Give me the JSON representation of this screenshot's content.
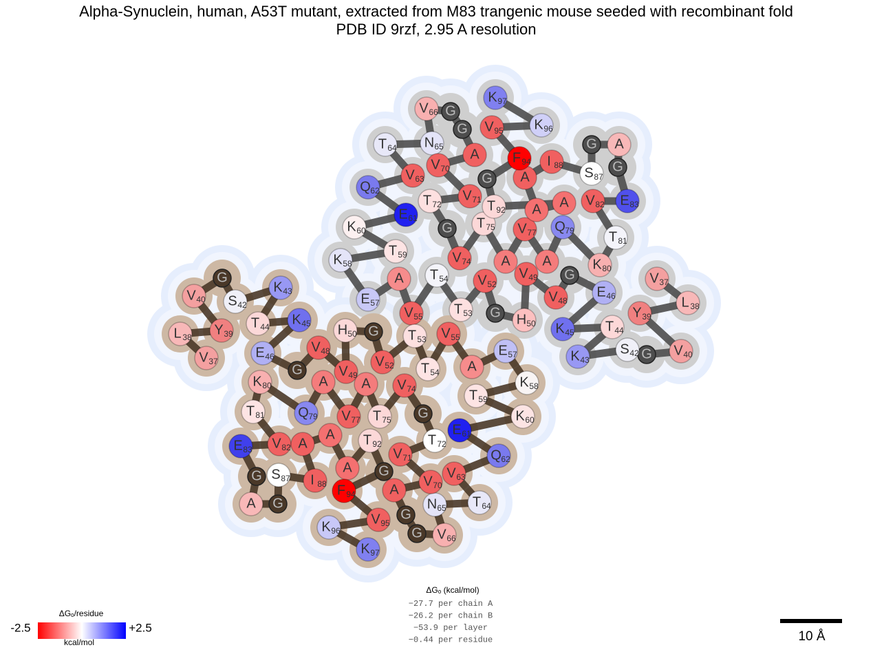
{
  "header": {
    "title": "Alpha-Synuclein, human, A53T mutant, extracted from M83 trangenic mouse seeded with recombinant fold",
    "subtitle": "PDB ID 9rzf, 2.95 A resolution"
  },
  "chains": [
    {
      "letters": [
        "V",
        "L",
        "Y",
        "V",
        "G",
        "S",
        "K",
        "T",
        "K",
        "E",
        "G",
        "V",
        "V",
        "H",
        "G",
        "V",
        "T",
        "T",
        "V",
        "A",
        "E",
        "K",
        "T",
        "K",
        "E",
        "Q",
        "V",
        "T",
        "N",
        "V",
        "G",
        "G",
        "A",
        "V",
        "V",
        "T",
        "G",
        "V",
        "T",
        "A",
        "V",
        "A",
        "Q",
        "K",
        "T",
        "V",
        "E",
        "G",
        "A",
        "G",
        "S",
        "I",
        "A",
        "A",
        "A",
        "T",
        "G",
        "F",
        "V",
        "K",
        "K"
      ],
      "numbers": [
        37,
        38,
        39,
        40,
        null,
        42,
        43,
        44,
        45,
        46,
        null,
        48,
        49,
        50,
        null,
        52,
        53,
        54,
        55,
        null,
        57,
        58,
        59,
        60,
        61,
        62,
        63,
        64,
        65,
        66,
        null,
        null,
        null,
        70,
        71,
        72,
        null,
        74,
        75,
        null,
        77,
        null,
        79,
        80,
        81,
        82,
        83,
        null,
        null,
        null,
        87,
        88,
        null,
        null,
        null,
        92,
        null,
        94,
        95,
        96,
        97
      ],
      "colors": [
        "#f4a0a0",
        "#f8b8b8",
        "#f08080",
        "#f4a0a0",
        "#4d4d4d",
        "#f0f0f8",
        "#9898f4",
        "#fcd8d8",
        "#7070ee",
        "#b0b0f4",
        "#4d4d4d",
        "#f06060",
        "#f06060",
        "#fcc0c0",
        "#4d4d4d",
        "#f06060",
        "#fde0e0",
        "#f4f4fa",
        "#f06060",
        "#f68c8c",
        "#c8c8f6",
        "#e4e4f8",
        "#fde4e4",
        "#fcf0f0",
        "#2020f0",
        "#7a7aee",
        "#f06060",
        "#e8e8f8",
        "#e4e4f8",
        "#f8b0b0",
        "#4d4d4d",
        "#4d4d4d",
        "#f06060",
        "#f06060",
        "#f06060",
        "#fde0e0",
        "#4d4d4d",
        "#f06060",
        "#fcd8d8",
        "#f47c7c",
        "#f06060",
        "#f47c7c",
        "#8888f0",
        "#f8b0b0",
        "#f4f4fa",
        "#f06060",
        "#5050ec",
        "#4d4d4d",
        "#f8b8b8",
        "#4d4d4d",
        "#ffffff",
        "#f06060",
        "#f06060",
        "#f47070",
        "#f47070",
        "#fcd8d8",
        "#4d4d4d",
        "#ff0000",
        "#f06060",
        "#d0d0f8",
        "#8080f0"
      ]
    },
    {
      "letters": [
        "V",
        "L",
        "Y",
        "V",
        "G",
        "S",
        "K",
        "T",
        "K",
        "E",
        "G",
        "V",
        "V",
        "H",
        "G",
        "V",
        "T",
        "T",
        "V",
        "A",
        "E",
        "K",
        "T",
        "K",
        "E",
        "Q",
        "V",
        "T",
        "N",
        "V",
        "G",
        "G",
        "A",
        "V",
        "V",
        "T",
        "G",
        "V",
        "T",
        "A",
        "V",
        "A",
        "Q",
        "K",
        "T",
        "V",
        "E",
        "G",
        "A",
        "G",
        "S",
        "I",
        "A",
        "A",
        "A",
        "T",
        "G",
        "F",
        "V",
        "K",
        "K"
      ],
      "numbers": [
        37,
        38,
        39,
        40,
        null,
        42,
        43,
        44,
        45,
        46,
        null,
        48,
        49,
        50,
        null,
        52,
        53,
        54,
        55,
        null,
        57,
        58,
        59,
        60,
        61,
        62,
        63,
        64,
        65,
        66,
        null,
        null,
        null,
        70,
        71,
        72,
        null,
        74,
        75,
        null,
        77,
        null,
        79,
        80,
        81,
        82,
        83,
        null,
        null,
        null,
        87,
        88,
        null,
        null,
        null,
        92,
        null,
        94,
        95,
        96,
        97
      ],
      "colors": [
        "#f4a0a0",
        "#f8b8b8",
        "#f08080",
        "#f4a0a0",
        "#4a3828",
        "#f0f0f8",
        "#9898f4",
        "#fcd8d8",
        "#7070ee",
        "#b0b0f4",
        "#4a3828",
        "#f06060",
        "#f06060",
        "#fcd8d8",
        "#4a3828",
        "#f06060",
        "#fde0e0",
        "#fde4e4",
        "#f06060",
        "#f68c8c",
        "#c0c0f6",
        "#f8f4f4",
        "#fde4e4",
        "#fce4e4",
        "#2020f0",
        "#7a7aee",
        "#f06060",
        "#e8e8f8",
        "#e4e4f8",
        "#f8b0b0",
        "#4a3828",
        "#4a3828",
        "#f06060",
        "#f06060",
        "#f06060",
        "#ffffff",
        "#4a3828",
        "#f06060",
        "#fcd8d8",
        "#f47c7c",
        "#f06060",
        "#f47c7c",
        "#8888f0",
        "#f8b0b0",
        "#fde4e4",
        "#f06060",
        "#4040ec",
        "#4a3828",
        "#f8b8b8",
        "#4a3828",
        "#ffffff",
        "#f06060",
        "#f06060",
        "#f47070",
        "#f47070",
        "#fcd8d8",
        "#4a3828",
        "#ff0000",
        "#f06060",
        "#c8c8f8",
        "#8080f0"
      ]
    }
  ],
  "legend": {
    "title": "ΔGₒ/residue",
    "min": "-2.5",
    "max": "+2.5",
    "unit": "kcal/mol"
  },
  "energy": {
    "title": "ΔGₒ (kcal/mol)",
    "lines": [
      "−27.7 per chain A",
      "−26.2 per chain B",
      "−53.9 per layer",
      "−0.44 per residue"
    ]
  },
  "scale_bar": {
    "label": "10 Å"
  }
}
